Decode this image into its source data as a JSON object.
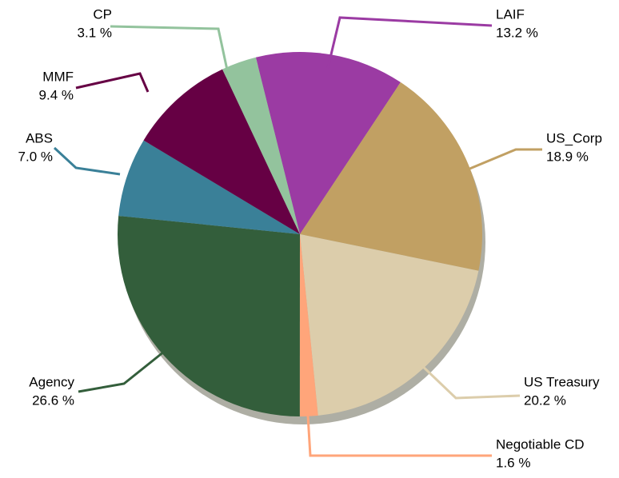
{
  "chart_data": {
    "type": "pie",
    "categories": [
      "LAIF",
      "US_Corp",
      "US Treasury",
      "Negotiable CD",
      "Agency",
      "ABS",
      "MMF",
      "CP"
    ],
    "values": [
      13.2,
      18.9,
      20.2,
      1.6,
      26.6,
      7.0,
      9.4,
      3.1
    ],
    "value_labels": [
      "13.2 %",
      "18.9 %",
      "20.2 %",
      "1.6 %",
      "26.6 %",
      "7.0 %",
      "9.4 %",
      "3.1 %"
    ],
    "colors": [
      "#9b3ba3",
      "#c1a063",
      "#dccdab",
      "#ffa57a",
      "#335e3b",
      "#3a8098",
      "#660044",
      "#93c39d"
    ]
  }
}
